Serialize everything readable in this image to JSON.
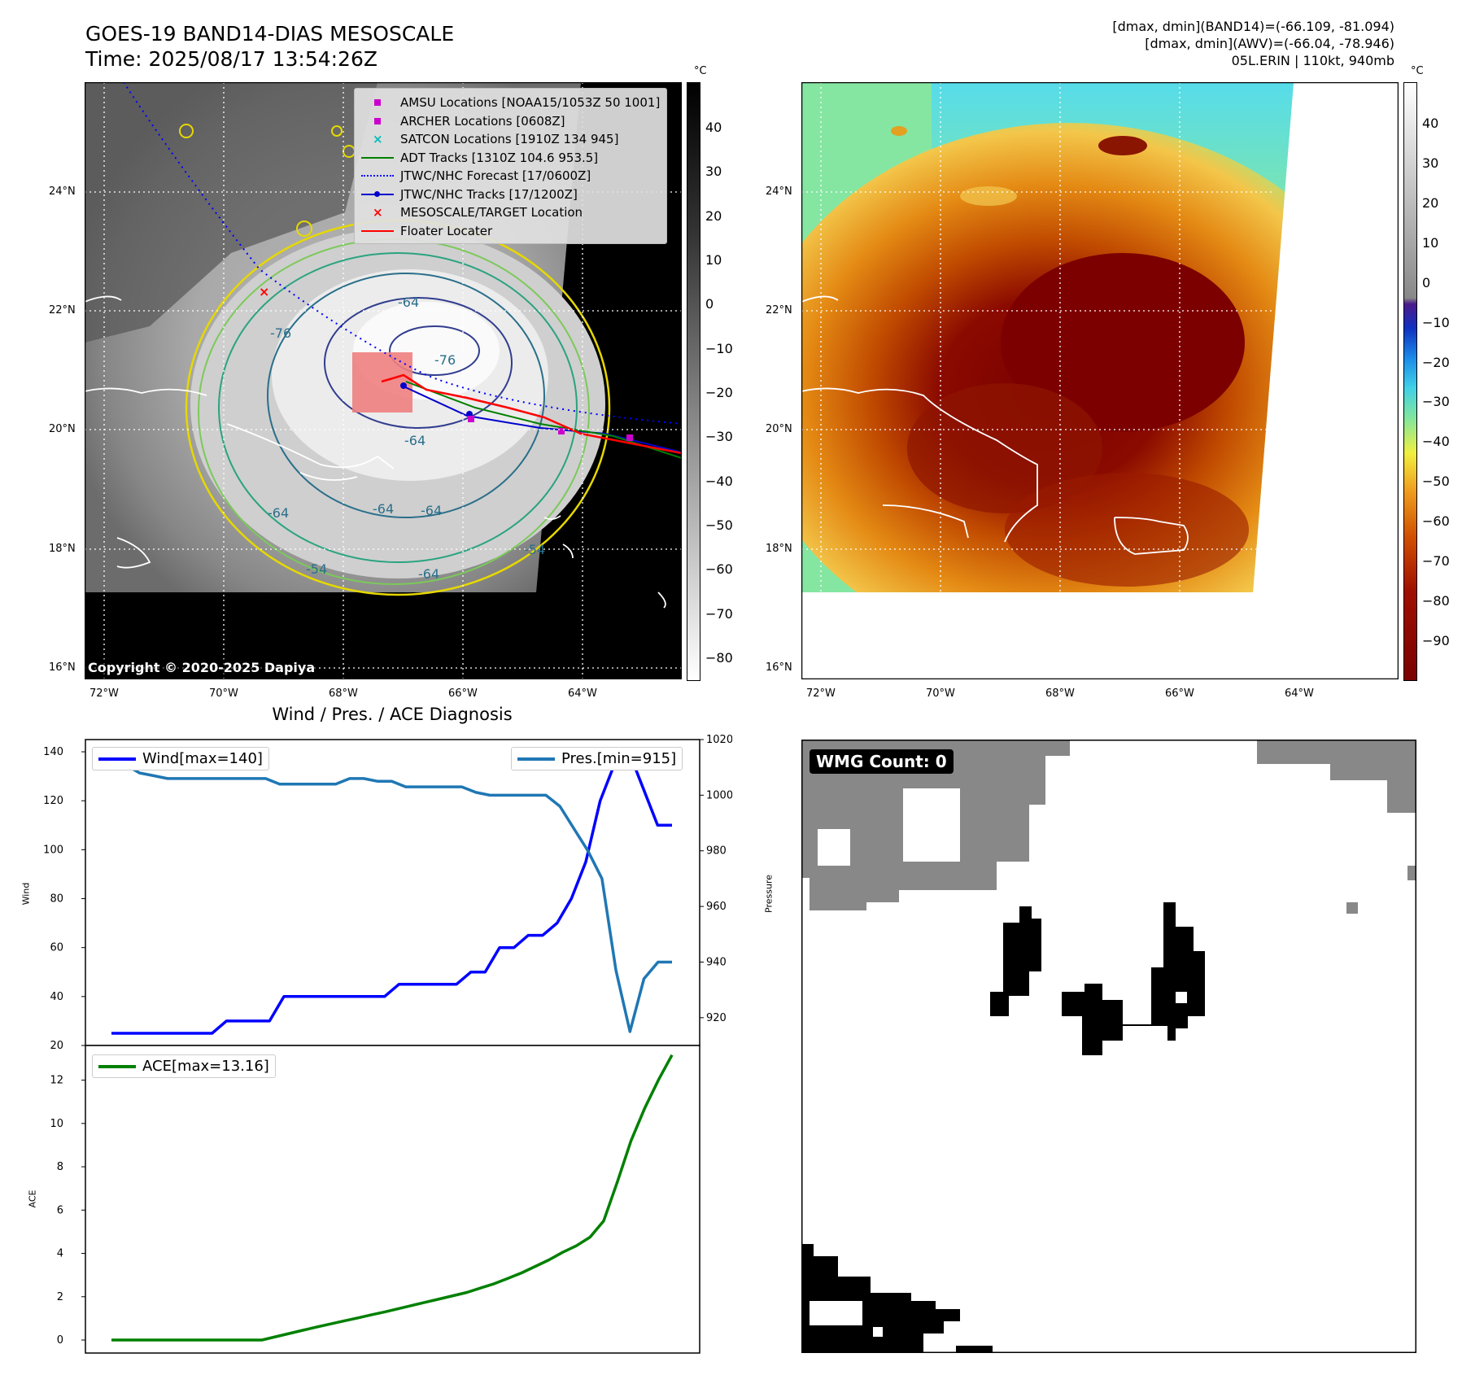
{
  "header": {
    "title_line1": "GOES-19 BAND14-DIAS MESOSCALE",
    "title_line2": "Time: 2025/08/17 13:54:26Z",
    "info_line1": "[dmax, dmin](BAND14)=(-66.109, -81.094)",
    "info_line2": "[dmax, dmin](AWV)=(-66.04, -78.946)",
    "info_line3": "05L.ERIN | 110kt, 940mb"
  },
  "maps": {
    "lat_labels": [
      "24°N",
      "22°N",
      "20°N",
      "18°N",
      "16°N"
    ],
    "lon_labels": [
      "72°W",
      "70°W",
      "68°W",
      "66°W",
      "64°W"
    ],
    "contour_labels": [
      "-64",
      "-76",
      "-76",
      "-64",
      "-64",
      "-54",
      "-64",
      "-54",
      "-64",
      "-64"
    ],
    "copyright": "Copyright © 2020-2025 Dapiya",
    "colorbar_unit": "°C",
    "colorbar1_ticks": [
      "40",
      "30",
      "20",
      "10",
      "0",
      "−10",
      "−20",
      "−30",
      "−40",
      "−50",
      "−60",
      "−70",
      "−80"
    ],
    "colorbar2_ticks": [
      "40",
      "30",
      "20",
      "10",
      "0",
      "−10",
      "−20",
      "−30",
      "−40",
      "−50",
      "−60",
      "−70",
      "−80",
      "−90"
    ]
  },
  "legend": {
    "items": [
      {
        "label": "AMSU Locations [NOAA15/1053Z 50 1001]",
        "symbol": "square",
        "color": "#cc00cc"
      },
      {
        "label": "ARCHER Locations [0608Z]",
        "symbol": "square",
        "color": "#cc00cc"
      },
      {
        "label": "SATCON Locations [1910Z 134 945]",
        "symbol": "x",
        "color": "#00bbbb"
      },
      {
        "label": "ADT Tracks [1310Z 104.6 953.5]",
        "symbol": "line",
        "color": "#008000"
      },
      {
        "label": "JTWC/NHC Forecast [17/0600Z]",
        "symbol": "dotted",
        "color": "#0000ff"
      },
      {
        "label": "JTWC/NHC Tracks [17/1200Z]",
        "symbol": "line-dot",
        "color": "#0000cc"
      },
      {
        "label": "MESOSCALE/TARGET Location",
        "symbol": "x",
        "color": "#ff0000"
      },
      {
        "label": "Floater Locater",
        "symbol": "line",
        "color": "#ff0000"
      }
    ]
  },
  "wmg": {
    "label": "WMG Count: 0"
  },
  "chart_data": [
    {
      "type": "line",
      "title": "Wind / Pres. / ACE Diagnosis",
      "ylabel": "Wind",
      "ylim": [
        20,
        145
      ],
      "yticks": [
        "140",
        "120",
        "100",
        "80",
        "60",
        "40",
        "20"
      ],
      "series": [
        {
          "name": "Wind[max=140]",
          "color": "#0000ff",
          "values": [
            25,
            25,
            25,
            25,
            25,
            25,
            25,
            25,
            30,
            30,
            30,
            30,
            40,
            40,
            40,
            40,
            40,
            40,
            40,
            40,
            45,
            45,
            45,
            45,
            45,
            50,
            50,
            60,
            60,
            65,
            65,
            70,
            80,
            95,
            120,
            135,
            140,
            125,
            110,
            110
          ]
        }
      ]
    },
    {
      "type": "line",
      "ylabel": "Pressure",
      "ylim": [
        910,
        1020
      ],
      "yticks": [
        "1020",
        "1000",
        "980",
        "960",
        "940",
        "920"
      ],
      "series": [
        {
          "name": "Pres.[min=915]",
          "color": "#1f77b4",
          "values": [
            1011,
            1011,
            1008,
            1007,
            1006,
            1006,
            1006,
            1006,
            1006,
            1006,
            1006,
            1006,
            1004,
            1004,
            1004,
            1004,
            1004,
            1006,
            1006,
            1005,
            1005,
            1003,
            1003,
            1003,
            1003,
            1003,
            1001,
            1000,
            1000,
            1000,
            1000,
            1000,
            996,
            988,
            980,
            970,
            937,
            915,
            934,
            940,
            940
          ]
        }
      ]
    },
    {
      "type": "line",
      "ylabel": "ACE",
      "ylim": [
        -0.6,
        13.6
      ],
      "yticks": [
        "12",
        "10",
        "8",
        "6",
        "4",
        "2",
        "0"
      ],
      "series": [
        {
          "name": "ACE[max=13.16]",
          "color": "#008000",
          "values": [
            0,
            0,
            0,
            0,
            0,
            0,
            0,
            0,
            0,
            0,
            0,
            0,
            0.15,
            0.3,
            0.45,
            0.6,
            0.74,
            0.88,
            1.02,
            1.16,
            1.3,
            1.45,
            1.6,
            1.75,
            1.9,
            2.05,
            2.2,
            2.4,
            2.6,
            2.85,
            3.1,
            3.4,
            3.7,
            4.05,
            4.35,
            4.75,
            5.5,
            7.3,
            9.2,
            10.7,
            12.0,
            13.16
          ]
        }
      ]
    }
  ]
}
